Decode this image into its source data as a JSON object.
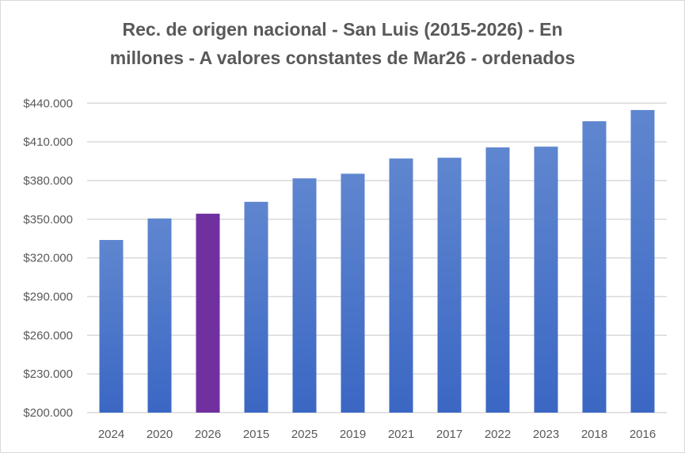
{
  "chart_data": {
    "type": "bar",
    "title_line1": "Rec. de origen nacional  - San Luis (2015-2026) - En",
    "title_line2": "millones - A valores constantes de Mar26 - ordenados",
    "categories": [
      "2024",
      "2020",
      "2026",
      "2015",
      "2025",
      "2019",
      "2021",
      "2017",
      "2022",
      "2023",
      "2018",
      "2016"
    ],
    "values": [
      333900,
      350600,
      354300,
      363500,
      381700,
      385300,
      397100,
      397700,
      405700,
      406300,
      426000,
      434700
    ],
    "highlight_category": "2026",
    "ylim": [
      200000,
      440000
    ],
    "yticks": [
      200000,
      230000,
      260000,
      290000,
      320000,
      350000,
      380000,
      410000,
      440000
    ],
    "ytick_labels": [
      "$200.000",
      "$230.000",
      "$260.000",
      "$290.000",
      "$320.000",
      "$350.000",
      "$380.000",
      "$410.000",
      "$440.000"
    ],
    "xlabel": "",
    "ylabel": "",
    "grid": true,
    "colors": {
      "bar_top": "#5f86cf",
      "bar_bottom": "#3b67c4",
      "highlight": "#7030a0",
      "grid": "#d9d9d9",
      "text": "#595959"
    }
  }
}
